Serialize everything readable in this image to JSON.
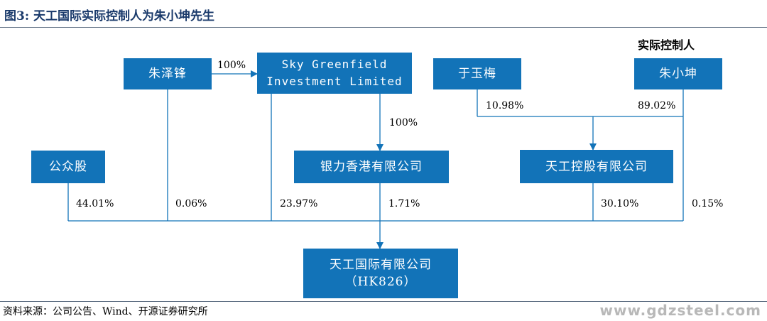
{
  "header": {
    "title": "图3:  天工国际实际控制人为朱小坤先生"
  },
  "entities": {
    "zhu_zefeng": "朱泽锋",
    "sky_greenfield": [
      "Sky Greenfield",
      "Investment Limited"
    ],
    "yu_yumei": "于玉梅",
    "zhu_xiaokun": "朱小坤",
    "public": "公众股",
    "yinli_hk": "银力香港有限公司",
    "tiangong_holding": "天工控股有限公司",
    "tiangong_intl": [
      "天工国际有限公司",
      "（HK826）"
    ]
  },
  "labels": {
    "actual_controller": "实际控制人"
  },
  "percentages": {
    "zhu_zefeng_to_sky": "100%",
    "sky_to_yinli": "100%",
    "yu_to_holding": "10.98%",
    "zhu_to_holding": "89.02%",
    "public_to_intl": "44.01%",
    "zhu_zefeng_to_intl": "0.06%",
    "sky_to_intl": "23.97%",
    "yinli_to_intl": "1.71%",
    "holding_to_intl": "30.10%",
    "zhu_xiaokun_to_intl": "0.15%"
  },
  "footer": {
    "source": "资料来源：公司公告、Wind、开源证券研究所",
    "watermark": "www.gdzsteel.com"
  },
  "colors": {
    "box": "#1273b8",
    "line": "#1273b8",
    "title": "#1a3a6b"
  }
}
